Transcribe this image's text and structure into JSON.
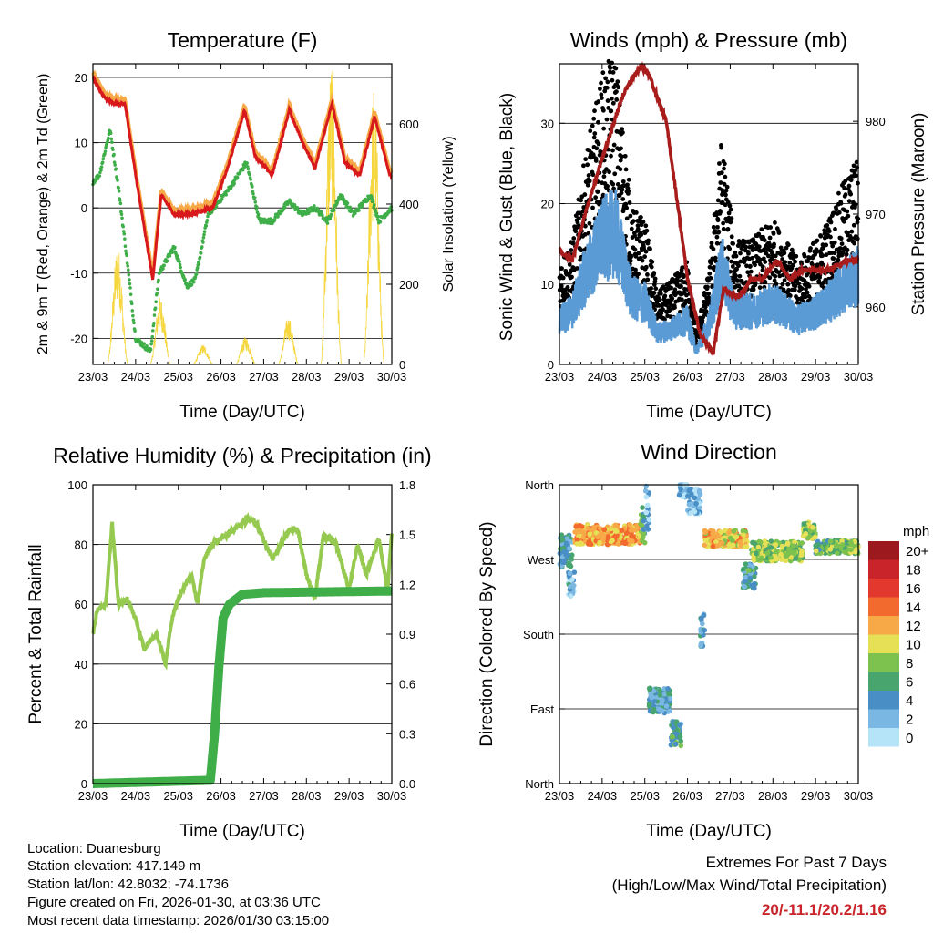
{
  "chart_data": [
    {
      "type": "line",
      "id": "temperature",
      "title": "Temperature (F)",
      "xlabel": "Time (Day/UTC)",
      "ylabel": "2m & 9m T (Red, Orange) & 2m Td (Green)",
      "ylabel_right": "Solar Insolation (Yellow)",
      "x_ticks": [
        "23/03",
        "24/03",
        "25/03",
        "26/03",
        "27/03",
        "28/03",
        "29/03",
        "30/03"
      ],
      "ylim": [
        -24,
        22.1
      ],
      "y_ticks": [
        -20,
        -10,
        0,
        10,
        20
      ],
      "ylim_right": [
        0,
        750
      ],
      "y_ticks_right": [
        0,
        200,
        400,
        600
      ],
      "series": [
        {
          "name": "2m T",
          "color": "#d7191c",
          "points": [
            [
              0,
              20
            ],
            [
              0.25,
              17
            ],
            [
              0.5,
              16
            ],
            [
              0.75,
              16
            ],
            [
              1.0,
              5
            ],
            [
              1.25,
              -5
            ],
            [
              1.4,
              -11
            ],
            [
              1.6,
              2
            ],
            [
              1.9,
              -1
            ],
            [
              2.3,
              -1
            ],
            [
              2.8,
              0
            ],
            [
              3.15,
              6
            ],
            [
              3.55,
              15
            ],
            [
              3.8,
              8
            ],
            [
              4.2,
              5
            ],
            [
              4.6,
              15
            ],
            [
              4.85,
              11
            ],
            [
              5.2,
              6
            ],
            [
              5.6,
              16
            ],
            [
              5.9,
              7
            ],
            [
              6.25,
              5
            ],
            [
              6.6,
              14
            ],
            [
              6.95,
              5
            ],
            [
              7,
              5
            ]
          ]
        },
        {
          "name": "9m T",
          "color": "#f7a947",
          "offset": 0.7
        },
        {
          "name": "2m Td",
          "color": "#3fae49",
          "points": [
            [
              0,
              4
            ],
            [
              0.15,
              5
            ],
            [
              0.4,
              12
            ],
            [
              0.6,
              3
            ],
            [
              0.8,
              -8
            ],
            [
              1.0,
              -20
            ],
            [
              1.35,
              -22
            ],
            [
              1.55,
              -10
            ],
            [
              1.9,
              -6
            ],
            [
              2.2,
              -12
            ],
            [
              2.4,
              -11
            ],
            [
              2.7,
              -1
            ],
            [
              3.2,
              3
            ],
            [
              3.6,
              7
            ],
            [
              3.9,
              -2
            ],
            [
              4.2,
              -2
            ],
            [
              4.6,
              1
            ],
            [
              4.9,
              -1
            ],
            [
              5.2,
              0
            ],
            [
              5.5,
              -2
            ],
            [
              5.8,
              2
            ],
            [
              6.1,
              -1
            ],
            [
              6.5,
              2
            ],
            [
              6.7,
              -2
            ],
            [
              7,
              0
            ]
          ]
        },
        {
          "name": "Solar Insolation",
          "color": "#f5d63d",
          "daily_peaks": [
            [
              0.58,
              300
            ],
            [
              1.58,
              170
            ],
            [
              2.58,
              50
            ],
            [
              3.58,
              70
            ],
            [
              4.58,
              120
            ],
            [
              5.58,
              760
            ],
            [
              6.58,
              700
            ]
          ]
        }
      ]
    },
    {
      "type": "scatter",
      "id": "winds",
      "title": "Winds (mph) & Pressure (mb)",
      "xlabel": "Time (Day/UTC)",
      "ylabel": "Sonic Wind & Gust (Blue, Black)",
      "ylabel_right": "Station Pressure (Maroon)",
      "x_ticks": [
        "23/03",
        "24/03",
        "25/03",
        "26/03",
        "27/03",
        "28/03",
        "29/03",
        "30/03"
      ],
      "ylim": [
        0,
        37.4
      ],
      "y_ticks": [
        0,
        10,
        20,
        30
      ],
      "ylim_right": [
        953.8,
        986.2
      ],
      "y_ticks_right": [
        960,
        970,
        980
      ],
      "series": [
        {
          "name": "Gust",
          "color": "#000000",
          "points": [
            [
              0,
              10
            ],
            [
              0.3,
              12
            ],
            [
              0.6,
              20
            ],
            [
              1,
              28
            ],
            [
              1.3,
              30
            ],
            [
              1.7,
              15
            ],
            [
              2,
              14
            ],
            [
              2.3,
              7
            ],
            [
              2.6,
              8
            ],
            [
              3.0,
              10
            ],
            [
              3.2,
              3
            ],
            [
              3.5,
              9
            ],
            [
              3.8,
              22
            ],
            [
              4.1,
              12
            ],
            [
              4.5,
              12
            ],
            [
              5,
              14
            ],
            [
              5.3,
              12
            ],
            [
              5.6,
              10
            ],
            [
              6,
              12
            ],
            [
              6.3,
              14
            ],
            [
              6.7,
              18
            ],
            [
              7,
              20
            ]
          ]
        },
        {
          "name": "Sonic Wind",
          "color": "#5b9bd5",
          "ratio": 0.55
        },
        {
          "name": "Station Pressure",
          "color": "#a81c1c",
          "points": [
            [
              0,
              966
            ],
            [
              0.3,
              965
            ],
            [
              0.6,
              970
            ],
            [
              1,
              976
            ],
            [
              1.5,
              983
            ],
            [
              1.9,
              986
            ],
            [
              2.1,
              985
            ],
            [
              2.5,
              980
            ],
            [
              2.8,
              970
            ],
            [
              3.0,
              963
            ],
            [
              3.3,
              957
            ],
            [
              3.6,
              955
            ],
            [
              3.85,
              962
            ],
            [
              4.2,
              961
            ],
            [
              4.5,
              963
            ],
            [
              4.75,
              963
            ],
            [
              5.1,
              965
            ],
            [
              5.4,
              963
            ],
            [
              5.7,
              964
            ],
            [
              6.3,
              964
            ],
            [
              6.7,
              965
            ],
            [
              7,
              965
            ]
          ]
        }
      ]
    },
    {
      "type": "line",
      "id": "humidity",
      "title": "Relative Humidity (%) & Precipitation (in)",
      "xlabel": "Time (Day/UTC)",
      "ylabel": "Percent & Total Rainfall",
      "x_ticks": [
        "23/03",
        "24/03",
        "25/03",
        "26/03",
        "27/03",
        "28/03",
        "29/03",
        "30/03"
      ],
      "ylim": [
        0,
        100
      ],
      "y_ticks": [
        0,
        20,
        40,
        60,
        80,
        100
      ],
      "ylim_right": [
        0,
        1.8
      ],
      "y_ticks_right": [
        "0.0",
        "0.3",
        "0.6",
        "0.9",
        "1.2",
        "1.5",
        "1.8"
      ],
      "series": [
        {
          "name": "Relative Humidity",
          "color": "#95c94f",
          "points": [
            [
              0,
              50
            ],
            [
              0.1,
              58
            ],
            [
              0.3,
              60
            ],
            [
              0.45,
              87
            ],
            [
              0.6,
              60
            ],
            [
              0.8,
              62
            ],
            [
              1.0,
              55
            ],
            [
              1.2,
              45
            ],
            [
              1.5,
              50
            ],
            [
              1.7,
              40
            ],
            [
              1.85,
              55
            ],
            [
              2.0,
              62
            ],
            [
              2.3,
              70
            ],
            [
              2.45,
              60
            ],
            [
              2.6,
              75
            ],
            [
              2.8,
              80
            ],
            [
              3.1,
              83
            ],
            [
              3.5,
              87
            ],
            [
              3.7,
              89
            ],
            [
              3.9,
              85
            ],
            [
              4.2,
              75
            ],
            [
              4.6,
              85
            ],
            [
              4.8,
              85
            ],
            [
              5.0,
              70
            ],
            [
              5.2,
              62
            ],
            [
              5.4,
              83
            ],
            [
              5.7,
              80
            ],
            [
              6.0,
              65
            ],
            [
              6.2,
              80
            ],
            [
              6.4,
              70
            ],
            [
              6.7,
              82
            ],
            [
              6.9,
              65
            ],
            [
              7,
              84
            ]
          ]
        },
        {
          "name": "Total Precipitation",
          "color": "#3fae49",
          "points": [
            [
              0,
              0
            ],
            [
              2.75,
              0.02
            ],
            [
              2.85,
              0.3
            ],
            [
              2.95,
              0.7
            ],
            [
              3.05,
              1.0
            ],
            [
              3.2,
              1.08
            ],
            [
              3.5,
              1.14
            ],
            [
              4,
              1.15
            ],
            [
              7,
              1.16
            ]
          ]
        }
      ]
    },
    {
      "type": "scatter",
      "id": "direction",
      "title": "Wind Direction",
      "xlabel": "Time (Day/UTC)",
      "ylabel": "Direction (Colored By Speed)",
      "x_ticks": [
        "23/03",
        "24/03",
        "25/03",
        "26/03",
        "27/03",
        "28/03",
        "29/03",
        "30/03"
      ],
      "y_ticks": [
        "North",
        "East",
        "South",
        "West",
        "North"
      ],
      "ylim": [
        0,
        360
      ],
      "legend": {
        "title": "mph",
        "position": "right",
        "labels": [
          "20+",
          "18",
          "16",
          "14",
          "12",
          "10",
          "8",
          "6",
          "4",
          "2",
          "0"
        ],
        "colors": [
          "#9c1a1d",
          "#c8242a",
          "#e3382e",
          "#f26a2e",
          "#f7a947",
          "#e6e056",
          "#7dc24e",
          "#48a56e",
          "#4a8ec6",
          "#7ab8e3",
          "#b5e3f7"
        ]
      },
      "segments": [
        [
          0,
          0.3,
          280,
          20,
          4
        ],
        [
          0.2,
          0.35,
          240,
          15,
          3
        ],
        [
          0.35,
          1.9,
          300,
          12,
          12
        ],
        [
          1.9,
          2.0,
          315,
          25,
          6
        ],
        [
          2.0,
          2.1,
          330,
          30,
          2
        ],
        [
          2.1,
          2.6,
          100,
          15,
          4
        ],
        [
          2.6,
          2.85,
          60,
          15,
          5
        ],
        [
          2.8,
          3.0,
          355,
          10,
          1
        ],
        [
          3.0,
          3.3,
          340,
          15,
          2
        ],
        [
          3.3,
          3.4,
          185,
          20,
          4
        ],
        [
          3.4,
          4.4,
          295,
          10,
          11
        ],
        [
          4.3,
          4.6,
          250,
          15,
          5
        ],
        [
          4.5,
          5.7,
          280,
          12,
          8
        ],
        [
          5.7,
          6.0,
          305,
          10,
          9
        ],
        [
          6.0,
          7.0,
          285,
          8,
          7
        ]
      ]
    }
  ],
  "info": {
    "location": "Location: Duanesburg",
    "elevation": "Station elevation: 417.149 m",
    "latlon": "Station lat/lon: 42.8032; -74.1736",
    "created": "Figure created on Fri, 2026-01-30, at 03:36 UTC",
    "timestamp": "Most recent data timestamp: 2026/01/30 03:15:00"
  },
  "extremes": {
    "title": "Extremes For Past 7 Days",
    "subtitle": "(High/Low/Max Wind/Total Precipitation)",
    "values": "20/-11.1/20.2/1.16"
  }
}
